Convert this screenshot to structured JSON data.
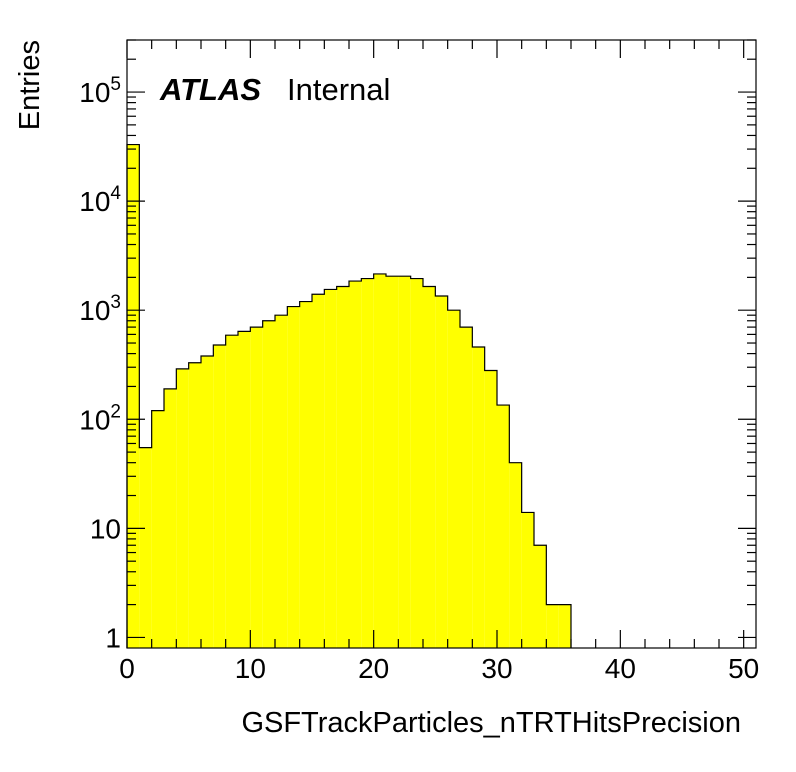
{
  "chart_data": {
    "type": "bar",
    "style": "histogram",
    "xlabel": "GSFTrackParticles_nTRTHitsPrecision",
    "ylabel": "Entries",
    "xlim": [
      0,
      51
    ],
    "ylim": [
      0.8,
      300000
    ],
    "yscale": "log",
    "fill_color": "#ffff00",
    "line_color": "#000000",
    "x_ticks": [
      0,
      10,
      20,
      30,
      40,
      50
    ],
    "y_ticks": [
      {
        "value": 1,
        "label": "1"
      },
      {
        "value": 10,
        "label": "10"
      },
      {
        "value": 100,
        "base": "10",
        "exp": "2"
      },
      {
        "value": 1000,
        "base": "10",
        "exp": "3"
      },
      {
        "value": 10000,
        "base": "10",
        "exp": "4"
      },
      {
        "value": 100000,
        "base": "10",
        "exp": "5"
      }
    ],
    "bin_edges": [
      0,
      1,
      2,
      3,
      4,
      5,
      6,
      7,
      8,
      9,
      10,
      11,
      12,
      13,
      14,
      15,
      16,
      17,
      18,
      19,
      20,
      21,
      22,
      23,
      24,
      25,
      26,
      27,
      28,
      29,
      30,
      31,
      32,
      33,
      34,
      35,
      36,
      37,
      38,
      39,
      40,
      41,
      42,
      43,
      44,
      45,
      46,
      47,
      48,
      49,
      50,
      51
    ],
    "values": [
      33000,
      55,
      120,
      190,
      290,
      330,
      380,
      480,
      590,
      640,
      700,
      800,
      900,
      1080,
      1200,
      1400,
      1550,
      1650,
      1850,
      1950,
      2150,
      2050,
      2050,
      1950,
      1650,
      1350,
      1000,
      700,
      460,
      280,
      135,
      40,
      14,
      7,
      2,
      2,
      0,
      0,
      0,
      0,
      0,
      0,
      0,
      0,
      0,
      0,
      0,
      0,
      0,
      0,
      0
    ],
    "label_atlas": "ATLAS",
    "label_status": "Internal"
  }
}
